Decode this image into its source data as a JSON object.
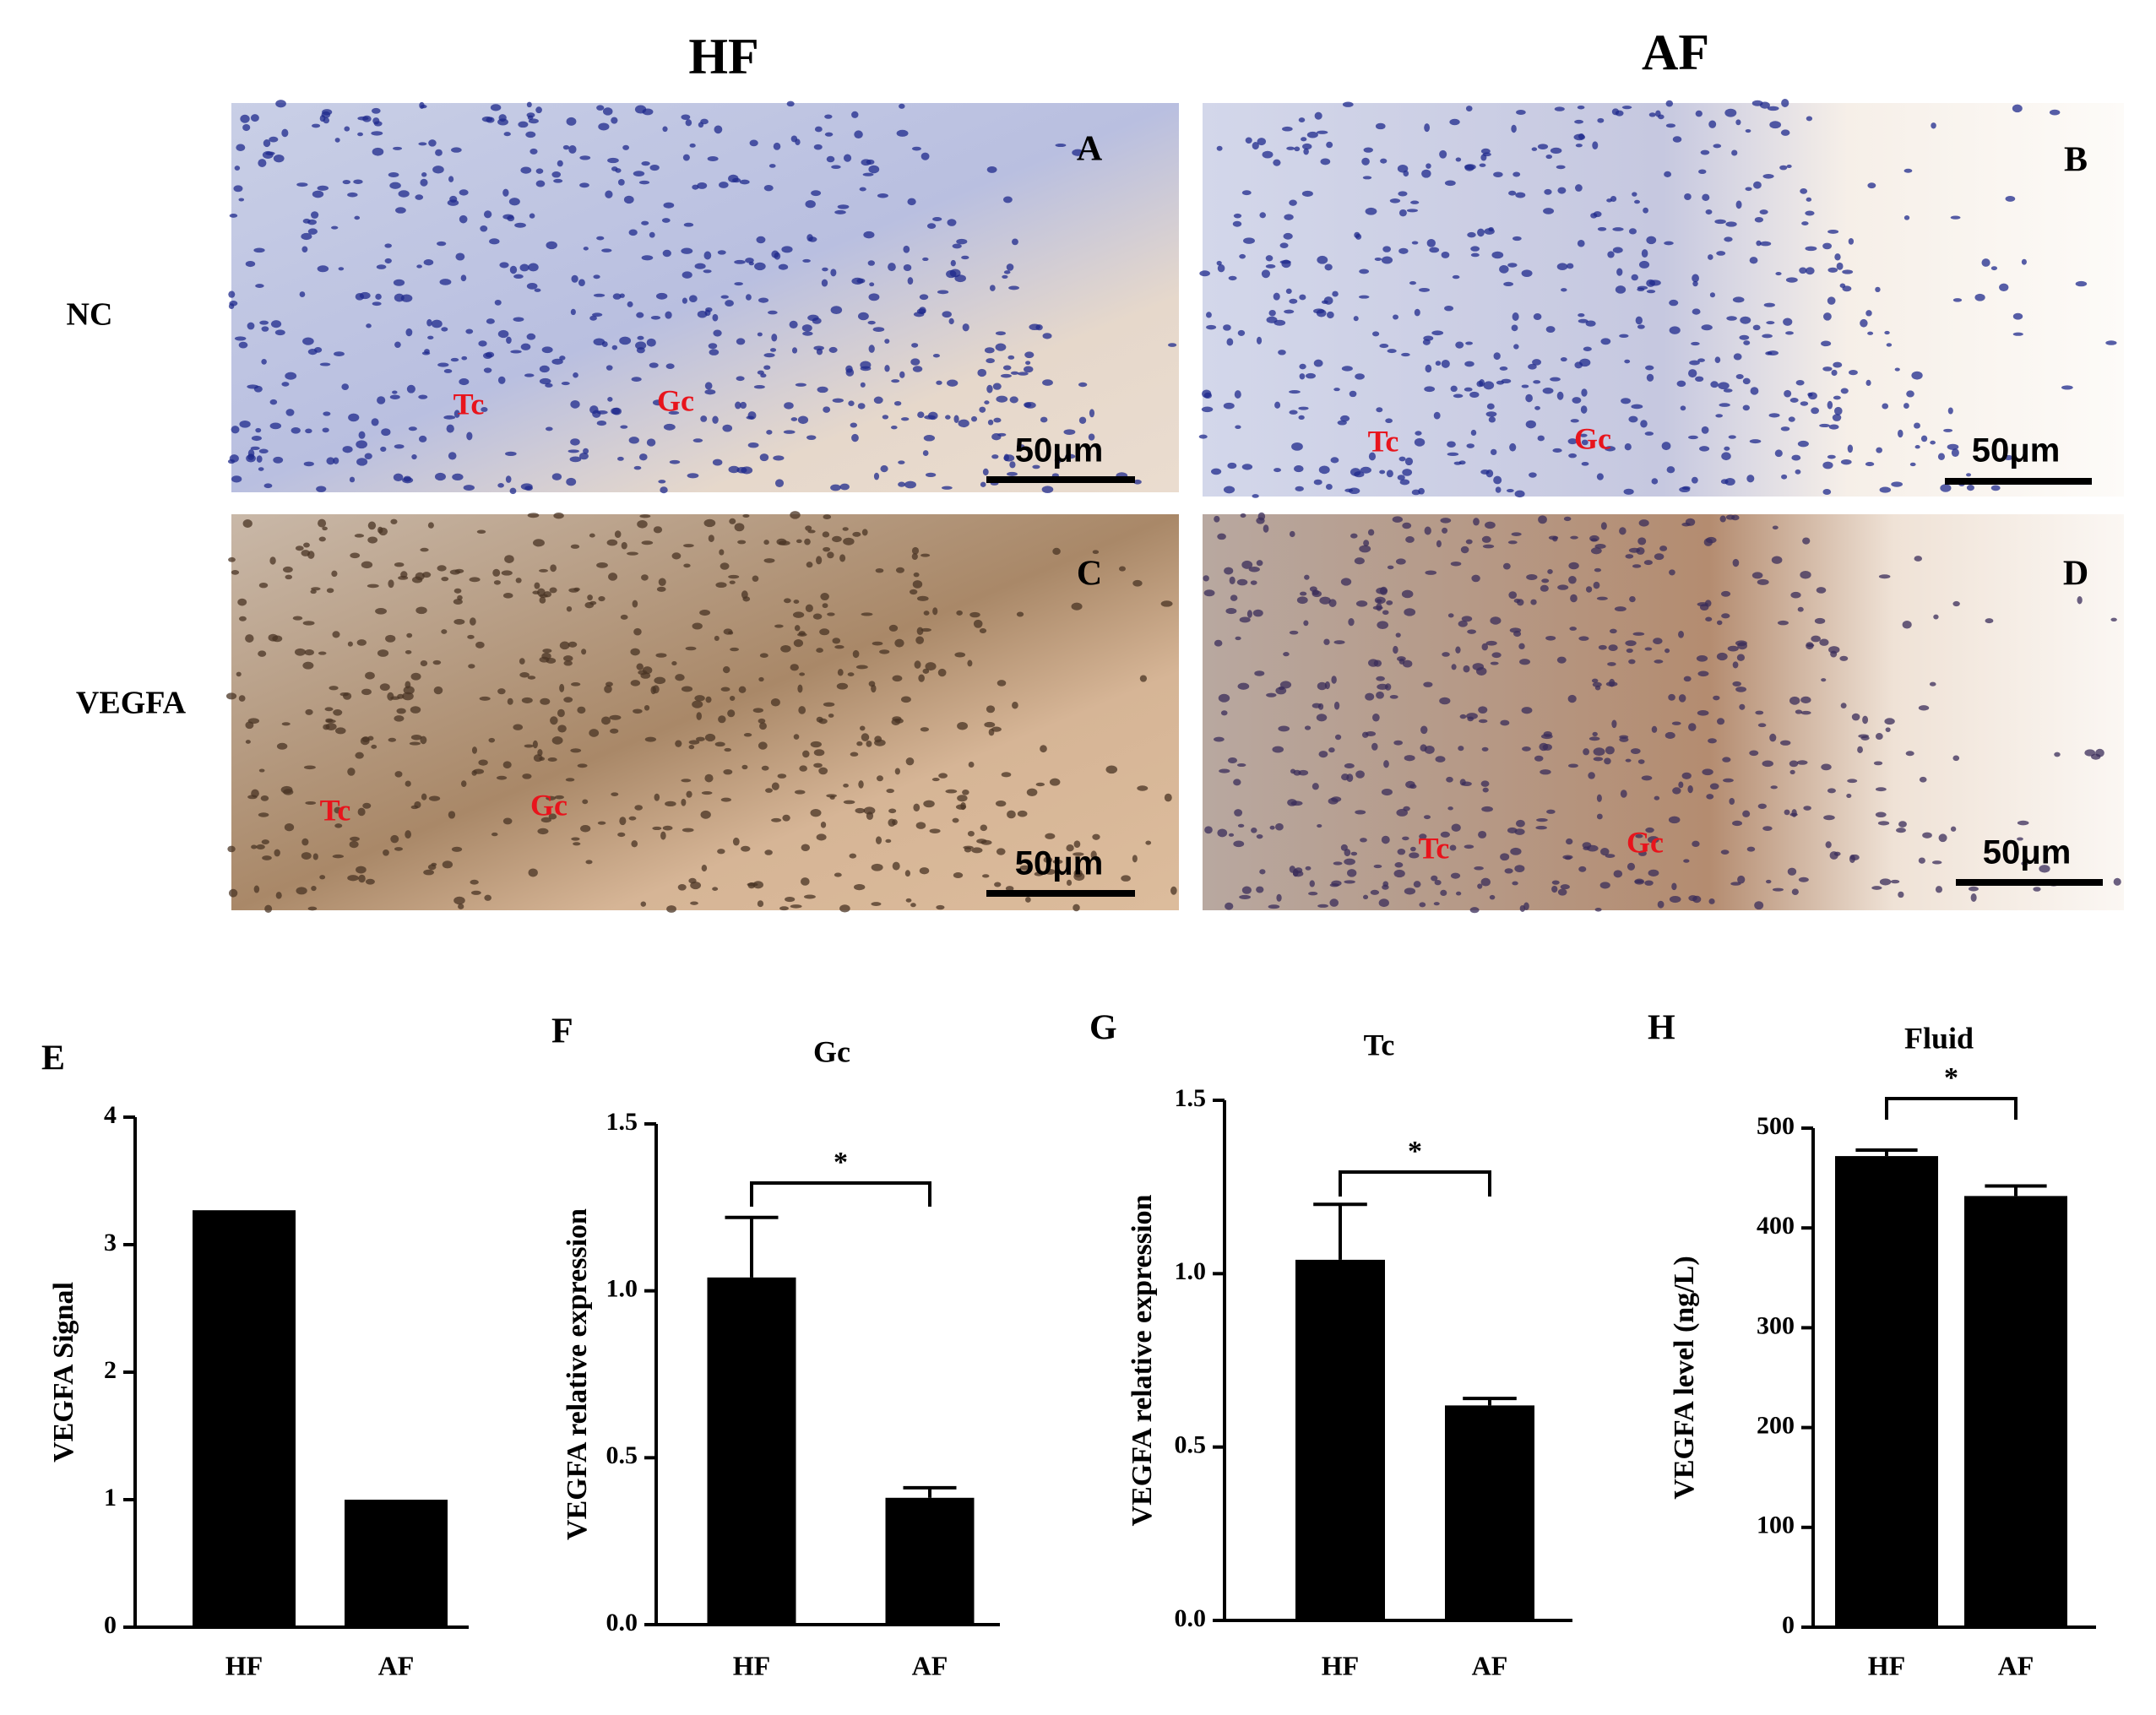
{
  "images": {
    "column_titles": [
      "HF",
      "AF"
    ],
    "row_labels": [
      "NC",
      "VEGFA"
    ],
    "panels": [
      {
        "label": "A",
        "annotations": [
          "Tc",
          "Gc"
        ],
        "scale_bar": "50μm"
      },
      {
        "label": "B",
        "annotations": [
          "Tc",
          "Gc"
        ],
        "scale_bar": "50μm"
      },
      {
        "label": "C",
        "annotations": [
          "Tc",
          "Gc"
        ],
        "scale_bar": "50μm"
      },
      {
        "label": "D",
        "annotations": [
          "Tc",
          "Gc"
        ],
        "scale_bar": "50μm"
      }
    ]
  },
  "chart_data": [
    {
      "type": "bar",
      "panel_label": "E",
      "ylabel": "VEGFA Signal",
      "categories": [
        "HF",
        "AF"
      ],
      "values": [
        3.27,
        1.0
      ],
      "color": "#000000",
      "ylim": [
        0,
        4
      ],
      "yticks": [
        0,
        1,
        2,
        3,
        4
      ]
    },
    {
      "type": "bar",
      "panel_label": "F",
      "title": "Gc",
      "ylabel": "VEGFA relative expression",
      "categories": [
        "HF",
        "AF"
      ],
      "values": [
        1.04,
        0.38
      ],
      "errors": [
        0.18,
        0.03
      ],
      "color": "#000000",
      "ylim": [
        0,
        1.5
      ],
      "yticks": [
        {
          "value": 0,
          "label": "0.0"
        },
        0.5,
        {
          "value": 1,
          "label": "1.0"
        },
        1.5
      ],
      "significance": "*"
    },
    {
      "type": "bar",
      "panel_label": "G",
      "title": "Tc",
      "ylabel": "VEGFA relative expression",
      "categories": [
        "HF",
        "AF"
      ],
      "values": [
        1.04,
        0.62
      ],
      "errors": [
        0.16,
        0.02
      ],
      "color": "#000000",
      "ylim": [
        0,
        1.5
      ],
      "yticks": [
        {
          "value": 0,
          "label": "0.0"
        },
        0.5,
        {
          "value": 1,
          "label": "1.0"
        },
        1.5
      ],
      "significance": "*"
    },
    {
      "type": "bar",
      "panel_label": "H",
      "title": "Fluid",
      "ylabel": "VEGFA level (ng/L)",
      "categories": [
        "HF",
        "AF"
      ],
      "values": [
        472,
        432
      ],
      "errors": [
        6,
        10
      ],
      "color": "#000000",
      "ylim": [
        0,
        500
      ],
      "yticks": [
        0,
        100,
        200,
        300,
        400,
        500
      ],
      "significance": "*"
    }
  ]
}
